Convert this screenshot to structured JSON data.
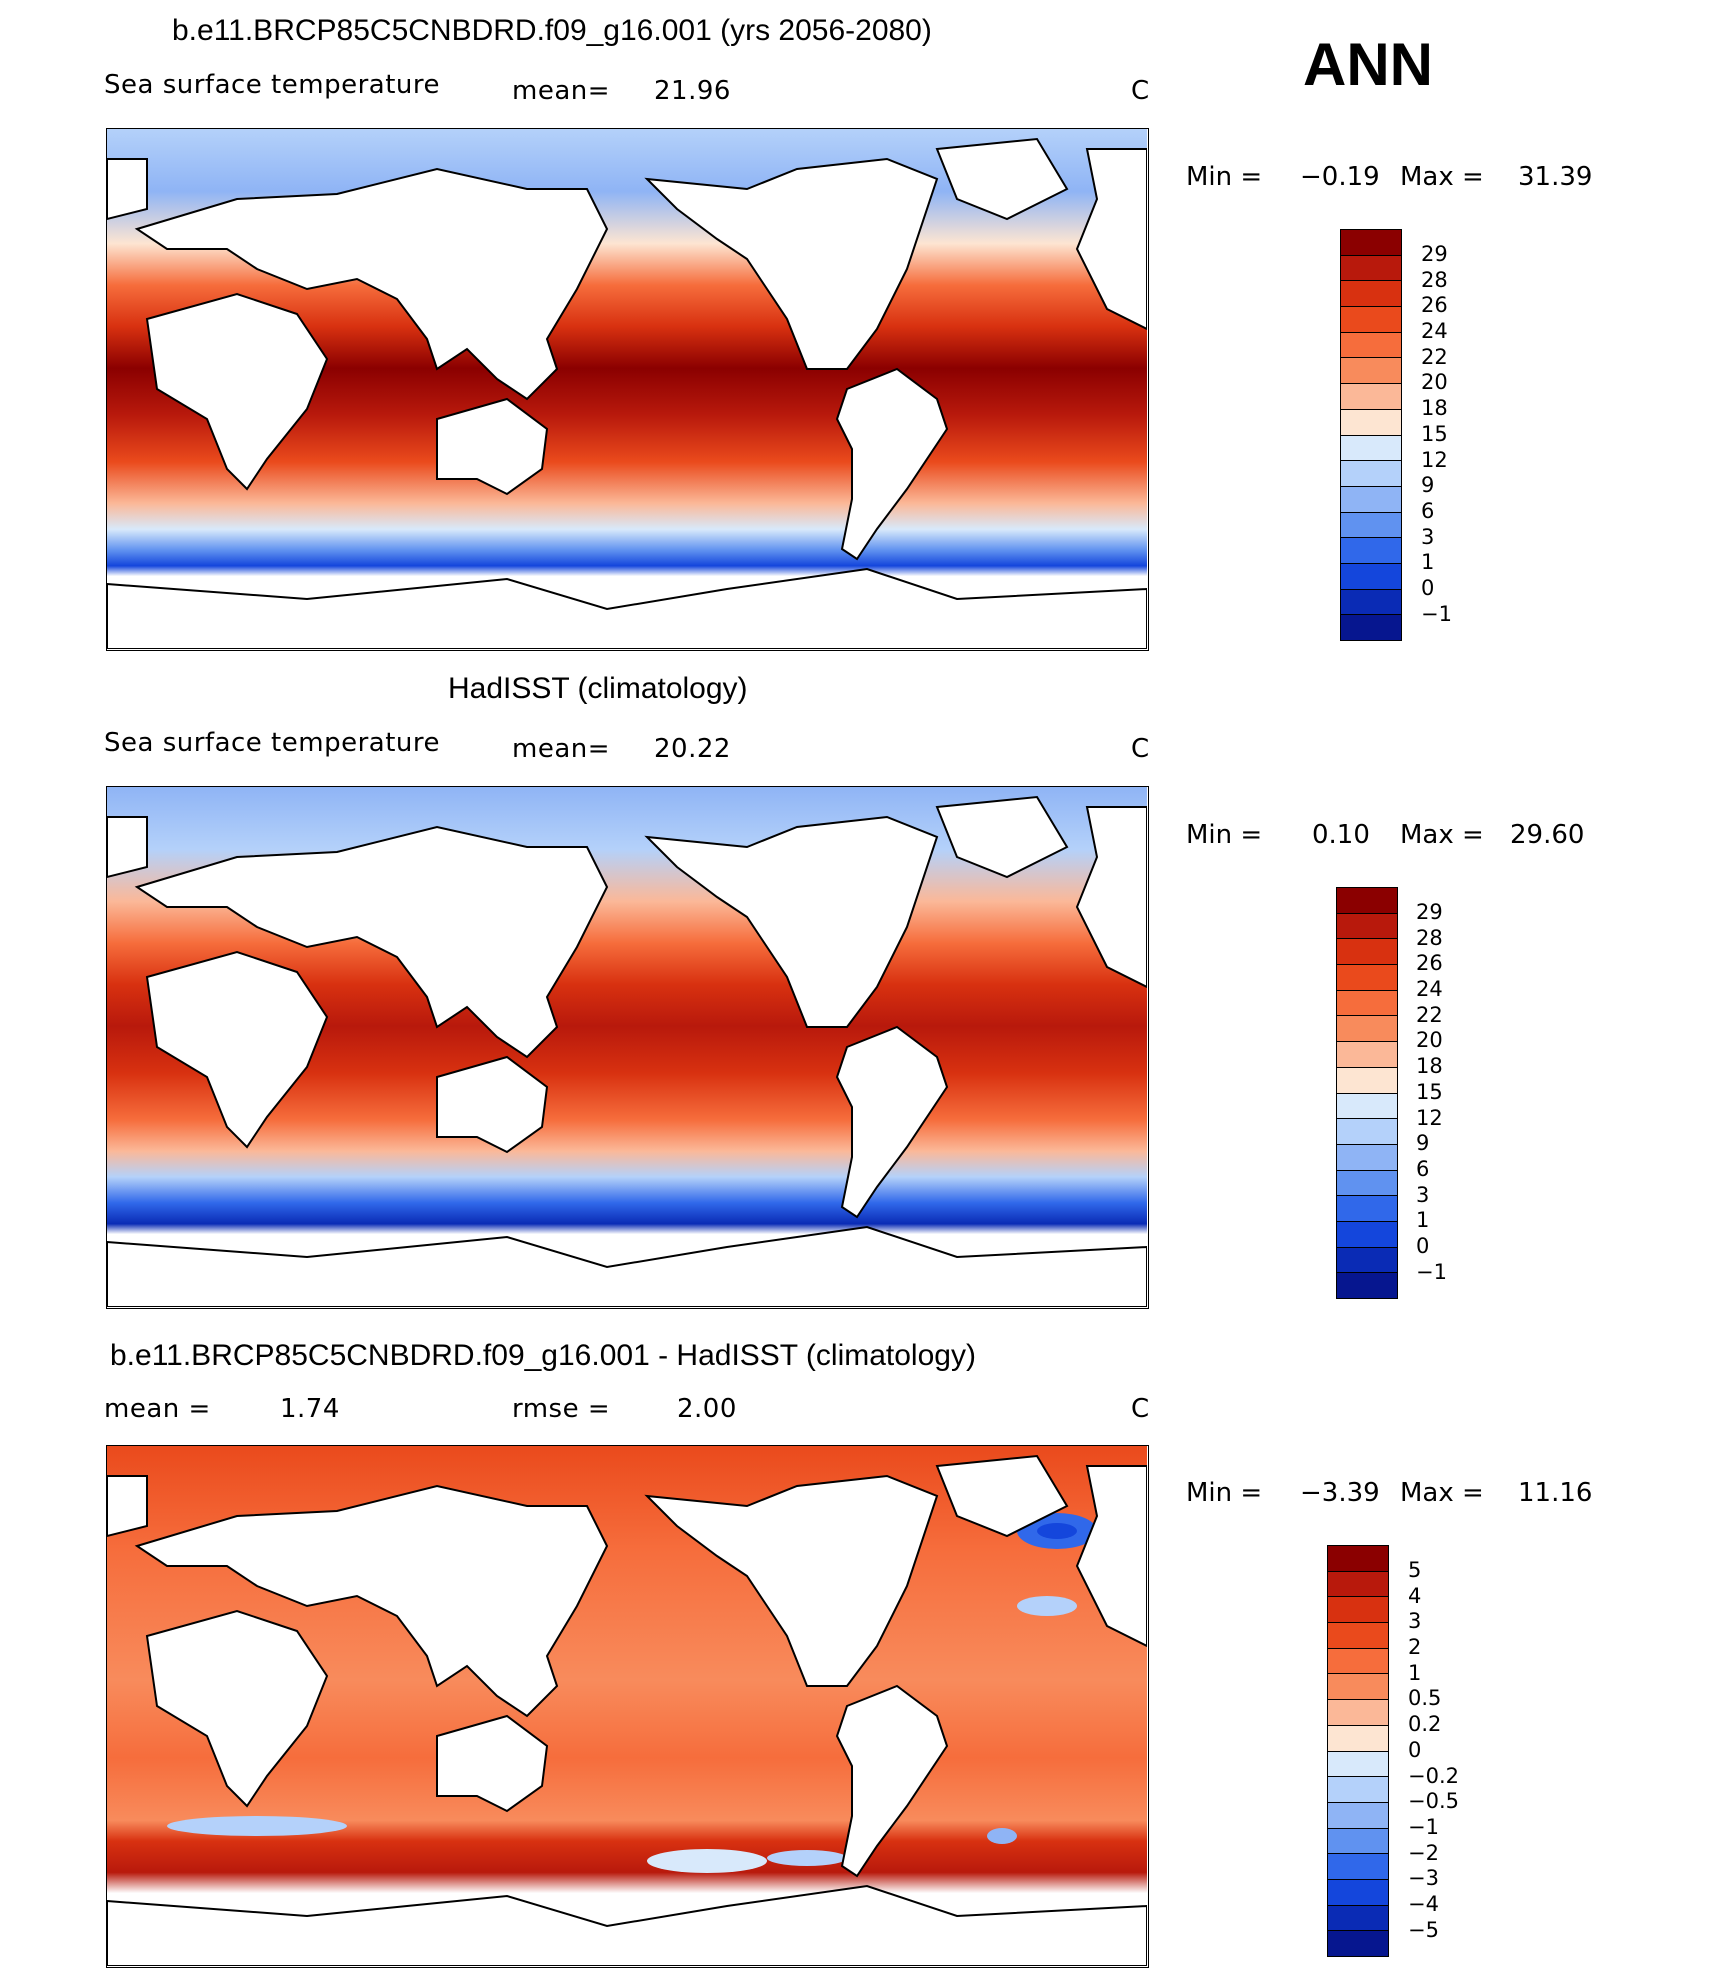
{
  "header": {
    "season": "ANN"
  },
  "panels": [
    {
      "id": "model",
      "title": "b.e11.BRCP85C5CNBDRD.f09_g16.001 (yrs 2056-2080)",
      "left_label": "Sea surface temperature",
      "mean_label": "mean=",
      "mean_value": "21.96",
      "units": "C",
      "min_label": "Min =",
      "min_value": "−0.19",
      "max_label": "Max =",
      "max_value": "31.39",
      "colorbar": {
        "levels": [
          "29",
          "28",
          "26",
          "24",
          "22",
          "20",
          "18",
          "15",
          "12",
          "9",
          "6",
          "3",
          "1",
          "0",
          "−1"
        ],
        "colors": [
          "#8b0000",
          "#b8190c",
          "#d83110",
          "#ea4a1c",
          "#f66d3c",
          "#f88b5c",
          "#fbb898",
          "#fde5d2",
          "#d8e9fb",
          "#b4d1fa",
          "#8fb4f5",
          "#6092f0",
          "#3068ea",
          "#1446dc",
          "#0a2bb5",
          "#06168f"
        ]
      }
    },
    {
      "id": "obs",
      "title": "HadISST (climatology)",
      "left_label": "Sea surface temperature",
      "mean_label": "mean=",
      "mean_value": "20.22",
      "units": "C",
      "min_label": "Min =",
      "min_value": "0.10",
      "max_label": "Max =",
      "max_value": "29.60",
      "colorbar": {
        "levels": [
          "29",
          "28",
          "26",
          "24",
          "22",
          "20",
          "18",
          "15",
          "12",
          "9",
          "6",
          "3",
          "1",
          "0",
          "−1"
        ],
        "colors": [
          "#8b0000",
          "#b8190c",
          "#d83110",
          "#ea4a1c",
          "#f66d3c",
          "#f88b5c",
          "#fbb898",
          "#fde5d2",
          "#d8e9fb",
          "#b4d1fa",
          "#8fb4f5",
          "#6092f0",
          "#3068ea",
          "#1446dc",
          "#0a2bb5",
          "#06168f"
        ]
      }
    },
    {
      "id": "diff",
      "title": "b.e11.BRCP85C5CNBDRD.f09_g16.001 - HadISST (climatology)",
      "mean_label": "mean =",
      "mean_value": "1.74",
      "rmse_label": "rmse =",
      "rmse_value": "2.00",
      "units": "C",
      "min_label": "Min =",
      "min_value": "−3.39",
      "max_label": "Max =",
      "max_value": "11.16",
      "colorbar": {
        "levels": [
          "5",
          "4",
          "3",
          "2",
          "1",
          "0.5",
          "0.2",
          "0",
          "−0.2",
          "−0.5",
          "−1",
          "−2",
          "−3",
          "−4",
          "−5"
        ],
        "colors": [
          "#8b0000",
          "#b8190c",
          "#d83110",
          "#ea4a1c",
          "#f66d3c",
          "#f88b5c",
          "#fbb898",
          "#fde5d2",
          "#d8e9fb",
          "#b4d1fa",
          "#8fb4f5",
          "#6092f0",
          "#3068ea",
          "#1446dc",
          "#0a2bb5",
          "#06168f"
        ]
      }
    }
  ]
}
